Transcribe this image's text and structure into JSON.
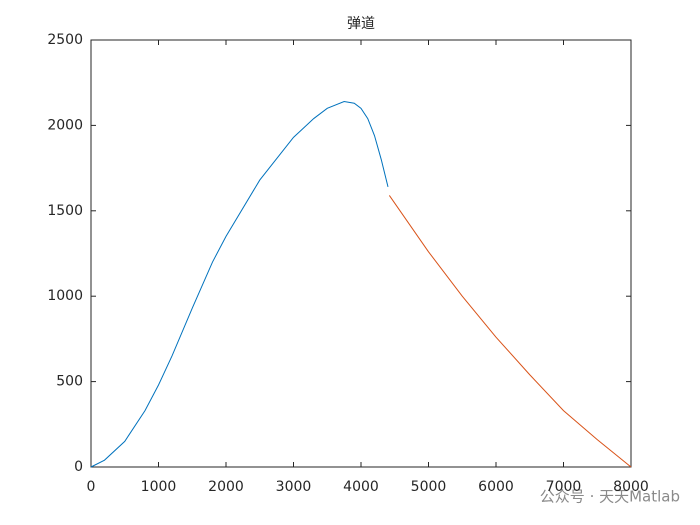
{
  "chart_data": {
    "type": "line",
    "title": "弹道",
    "series": [
      {
        "color": "#0072BD",
        "x": [
          0,
          200,
          500,
          800,
          1000,
          1200,
          1500,
          1800,
          2000,
          2500,
          3000,
          3300,
          3500,
          3750,
          3900,
          4000,
          4100,
          4200,
          4300,
          4400
        ],
        "values": [
          0,
          40,
          150,
          330,
          480,
          650,
          930,
          1200,
          1350,
          1680,
          1930,
          2040,
          2100,
          2140,
          2130,
          2100,
          2040,
          1940,
          1800,
          1640
        ]
      },
      {
        "color": "#D95319",
        "x": [
          4420,
          5000,
          5500,
          6000,
          6500,
          7000,
          7500,
          8000
        ],
        "values": [
          1590,
          1260,
          1000,
          760,
          540,
          330,
          160,
          0
        ]
      }
    ],
    "xlim": [
      0,
      8000
    ],
    "xticks": [
      0,
      1000,
      2000,
      3000,
      4000,
      5000,
      6000,
      7000,
      8000
    ],
    "ylim": [
      0,
      2500
    ],
    "yticks": [
      0,
      500,
      1000,
      1500,
      2000,
      2500
    ],
    "grid": false,
    "watermark": "公众号 · 天天Matlab"
  }
}
